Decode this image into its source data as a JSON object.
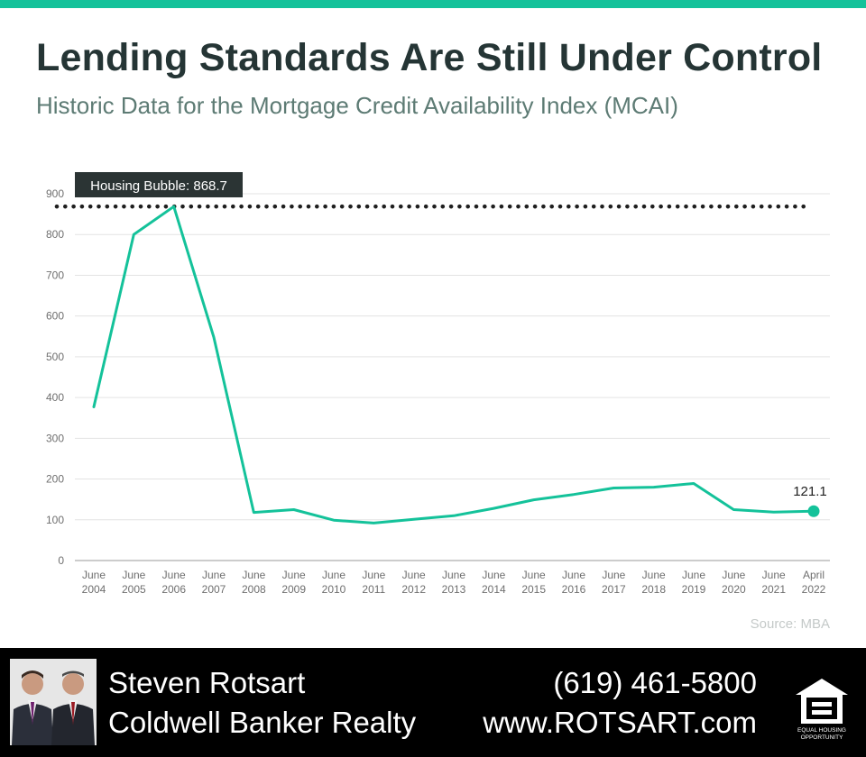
{
  "header": {
    "title": "Lending Standards Are Still Under Control",
    "subtitle": "Historic Data for the Mortgage Credit Availability Index (MCAI)"
  },
  "chart_data": {
    "type": "line",
    "x": [
      [
        "June",
        "2004"
      ],
      [
        "June",
        "2005"
      ],
      [
        "June",
        "2006"
      ],
      [
        "June",
        "2007"
      ],
      [
        "June",
        "2008"
      ],
      [
        "June",
        "2009"
      ],
      [
        "June",
        "2010"
      ],
      [
        "June",
        "2011"
      ],
      [
        "June",
        "2012"
      ],
      [
        "June",
        "2013"
      ],
      [
        "June",
        "2014"
      ],
      [
        "June",
        "2015"
      ],
      [
        "June",
        "2016"
      ],
      [
        "June",
        "2017"
      ],
      [
        "June",
        "2018"
      ],
      [
        "June",
        "2019"
      ],
      [
        "June",
        "2020"
      ],
      [
        "June",
        "2021"
      ],
      [
        "April",
        "2022"
      ]
    ],
    "values": [
      377,
      800,
      868.7,
      548,
      118,
      125,
      99,
      92,
      101,
      110,
      128,
      149,
      162,
      178,
      180,
      189,
      125,
      119,
      121.1
    ],
    "ylim": [
      0,
      900
    ],
    "yticks": [
      0,
      100,
      200,
      300,
      400,
      500,
      600,
      700,
      800,
      900
    ],
    "grid": true,
    "line_color": "#14c29a",
    "reference_line": {
      "value": 868.7,
      "label": "Housing Bubble: 868.7"
    },
    "end_label": "121.1"
  },
  "source": "Source: MBA",
  "footer": {
    "agent_name": "Steven Rotsart",
    "company": "Coldwell Banker Realty",
    "phone": "(619) 461-5800",
    "website": "www.ROTSART.com",
    "logo_text": [
      "EQUAL HOUSING",
      "OPPORTUNITY"
    ]
  },
  "colors": {
    "accent": "#14c29a",
    "title": "#253535",
    "subtitle": "#5d7b74",
    "annotation_bg": "#2b3434",
    "footer_bg": "#000000"
  }
}
